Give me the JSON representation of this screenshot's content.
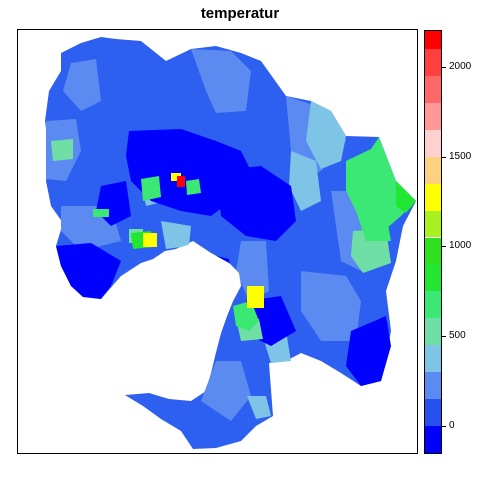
{
  "title": "temperatur",
  "legend": {
    "range": [
      -150,
      2200
    ],
    "breaks": [
      -150,
      0,
      150,
      300,
      450,
      600,
      750,
      900,
      1050,
      1200,
      1350,
      1500,
      1650,
      1800,
      1950,
      2100,
      2200
    ],
    "colors": [
      "#0000ff",
      "#2850ee",
      "#5b8af0",
      "#7ec4e6",
      "#70dfa6",
      "#3ce874",
      "#22e632",
      "#2ee020",
      "#a8f020",
      "#ffff00",
      "#ffd080",
      "#ffd0d0",
      "#ff9898",
      "#ff6868",
      "#ff4040",
      "#ff0000"
    ],
    "ticks": [
      "0",
      "500",
      "1000",
      "1500",
      "2000"
    ],
    "tick_values": [
      0,
      500,
      1000,
      1500,
      2000
    ]
  },
  "colors": {
    "water": "#ffffff",
    "base": "#2d5ff0"
  }
}
